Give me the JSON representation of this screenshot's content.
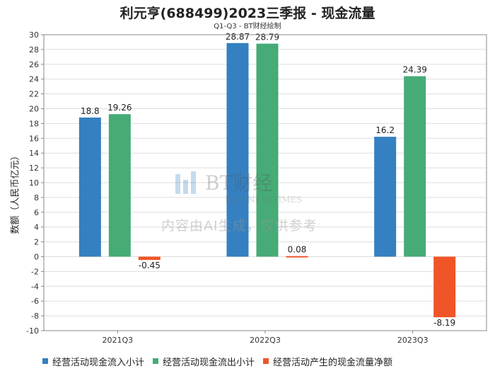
{
  "header": {
    "title": "利元亨(688499)2023三季报 - 现金流量",
    "subtitle": "Q1-Q3 - BT财经绘制"
  },
  "watermark": {
    "logo_text": "BT财经",
    "logo_subtext": "BUSINESSTIMES",
    "notice": "内容由AI生成，仅供参考"
  },
  "colors": {
    "series": [
      "#3480c0",
      "#46ab77",
      "#f05528"
    ],
    "axis": "#888888",
    "grid": "#dddddd"
  },
  "chart_data": {
    "type": "bar",
    "title": "利元亨(688499)2023三季报 - 现金流量",
    "subtitle": "Q1-Q3 - BT财经绘制",
    "xlabel": "",
    "ylabel": "数额（人民币亿元）",
    "categories": [
      "2021Q3",
      "2022Q3",
      "2023Q3"
    ],
    "series": [
      {
        "name": "经营活动现金流入小计",
        "values": [
          18.8,
          28.87,
          16.2
        ],
        "labels": [
          "18.8",
          "28.87",
          "16.2"
        ]
      },
      {
        "name": "经营活动现金流出小计",
        "values": [
          19.26,
          28.79,
          24.39
        ],
        "labels": [
          "19.26",
          "28.79",
          "24.39"
        ]
      },
      {
        "name": "经营活动产生的现金流量净额",
        "values": [
          -0.45,
          0.08,
          -8.19
        ],
        "labels": [
          "-0.45",
          "0.08",
          "-8.19"
        ]
      }
    ],
    "ylim": [
      -10,
      30
    ],
    "yticks": [
      -10,
      -8,
      -6,
      -4,
      -2,
      0,
      2,
      4,
      6,
      8,
      10,
      12,
      14,
      16,
      18,
      20,
      22,
      24,
      26,
      28,
      30
    ],
    "grid": true,
    "legend_position": "bottom"
  }
}
